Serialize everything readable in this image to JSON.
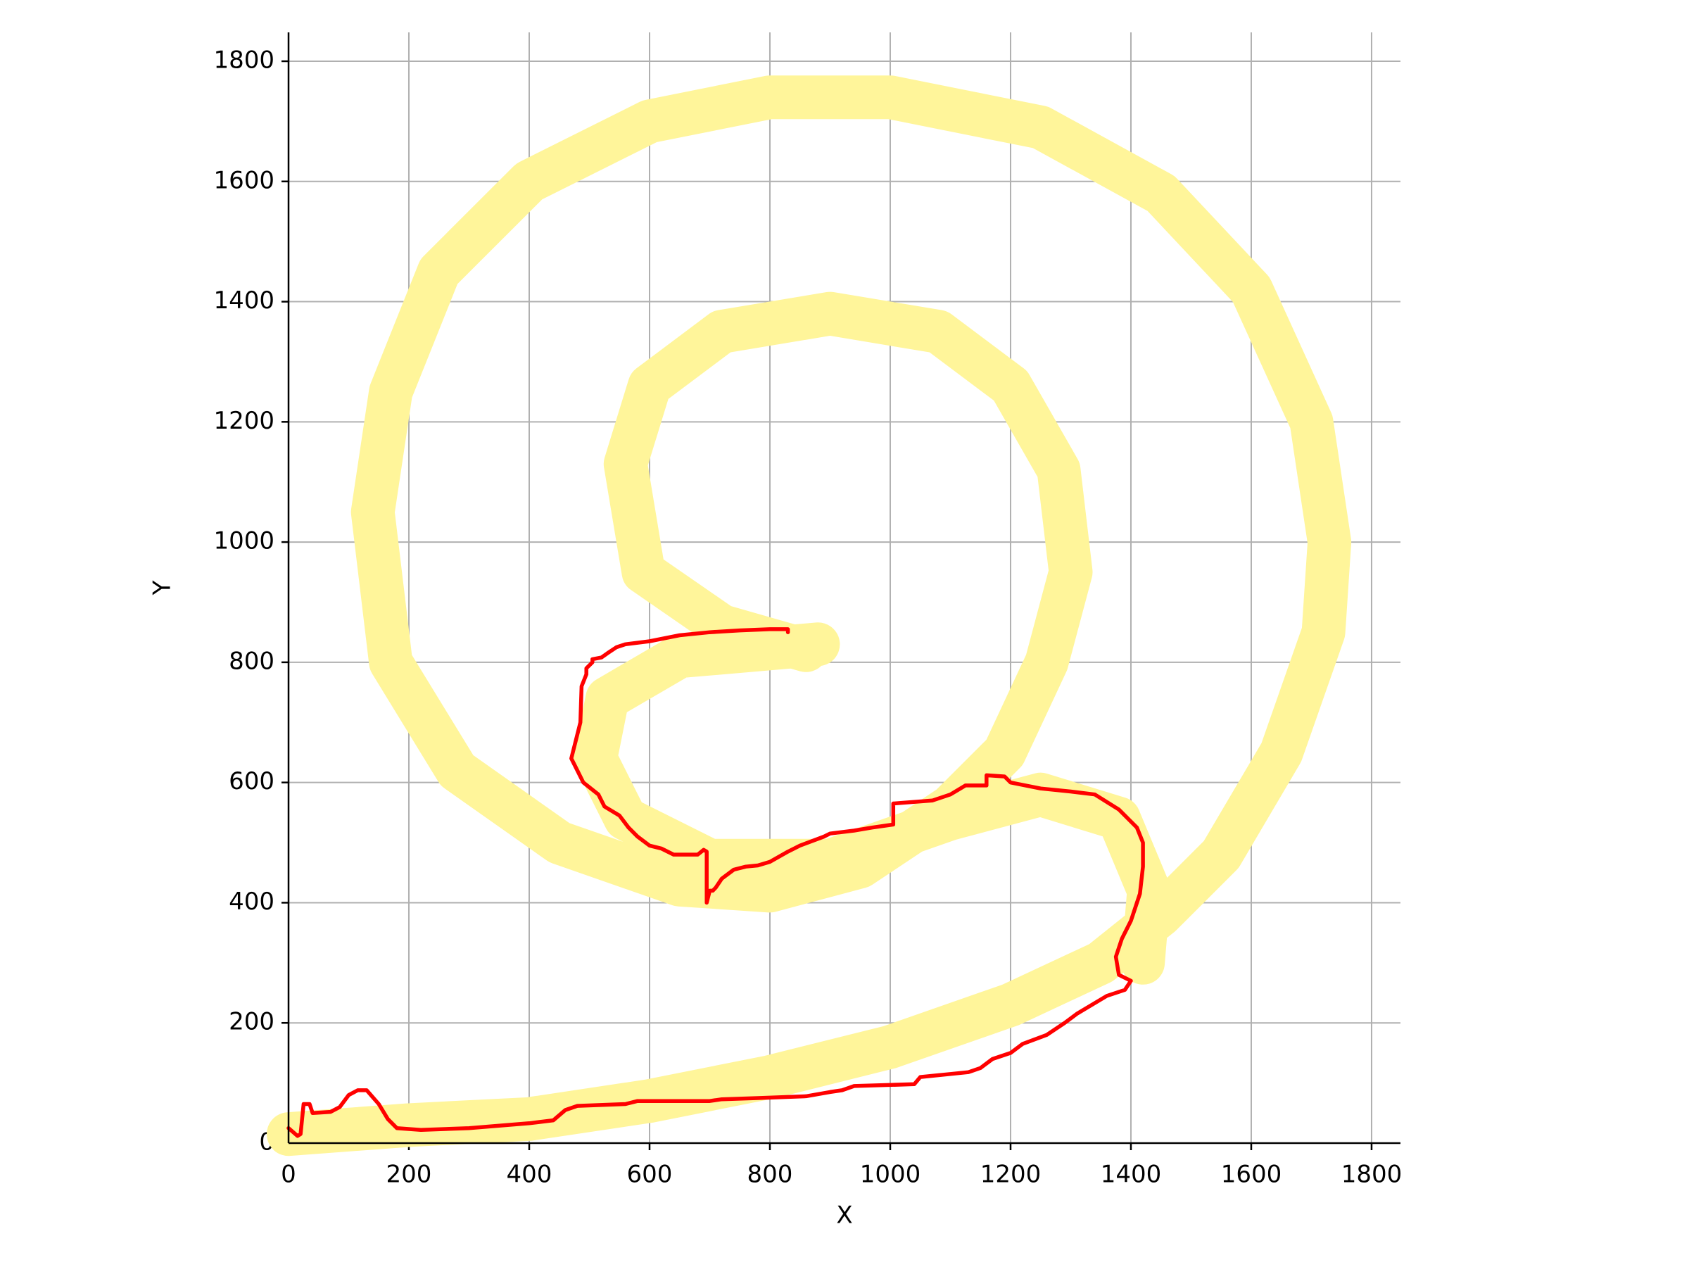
{
  "chart_data": {
    "type": "line",
    "xlabel": "X",
    "ylabel": "Y",
    "xlim": [
      0,
      1848
    ],
    "ylim": [
      0,
      1848
    ],
    "xticks": [
      0,
      200,
      400,
      600,
      800,
      1000,
      1200,
      1400,
      1600,
      1800
    ],
    "yticks": [
      0,
      200,
      400,
      600,
      800,
      1000,
      1200,
      1400,
      1600,
      1800
    ],
    "grid": true,
    "series": [
      {
        "color": "#fff59a",
        "x": [
          0,
          200,
          400,
          600,
          800,
          1000,
          1200,
          1350,
          1450,
          1550,
          1650,
          1720,
          1730,
          1700,
          1600,
          1450,
          1250,
          1000,
          800,
          600,
          400,
          250,
          170,
          140,
          170,
          280,
          450,
          650,
          800,
          950,
          1100,
          1190,
          1260,
          1300,
          1280,
          1200,
          1080,
          900,
          720,
          600,
          560,
          590,
          720,
          860,
          null,
          880,
          650,
          530,
          510,
          560,
          700,
          900,
          1100,
          1250,
          1380,
          1430,
          1420
        ],
        "values": [
          15,
          30,
          40,
          70,
          110,
          160,
          230,
          300,
          380,
          480,
          650,
          850,
          1000,
          1200,
          1420,
          1580,
          1690,
          1740,
          1740,
          1700,
          1600,
          1450,
          1250,
          1050,
          800,
          620,
          500,
          430,
          420,
          460,
          560,
          650,
          800,
          950,
          1120,
          1260,
          1350,
          1380,
          1350,
          1260,
          1130,
          950,
          860,
          820,
          null,
          830,
          810,
          740,
          640,
          540,
          470,
          470,
          540,
          580,
          540,
          420,
          300
        ]
      },
      {
        "color": "#ff0000",
        "x": [
          0,
          15,
          20,
          25,
          35,
          40,
          70,
          85,
          100,
          115,
          130,
          150,
          165,
          180,
          220,
          300,
          400,
          440,
          460,
          480,
          560,
          580,
          700,
          720,
          780,
          860,
          900,
          920,
          940,
          1040,
          1050,
          1100,
          1130,
          1150,
          1170,
          1200,
          1220,
          1260,
          1290,
          1310,
          1360,
          1390,
          1400,
          1380,
          1375,
          1385,
          1400,
          1415,
          1420,
          1420,
          1410,
          1380,
          1340,
          1300,
          1250,
          1200,
          1190,
          1160,
          1160,
          1125,
          1100,
          1070,
          1005,
          1005,
          970,
          940,
          900,
          890,
          850,
          830,
          800,
          780,
          760,
          740,
          720,
          710,
          705,
          700,
          695,
          695,
          690,
          680,
          640,
          620,
          600,
          580,
          565,
          550,
          525,
          515,
          490,
          480,
          470,
          485,
          487,
          495,
          495,
          505,
          505,
          520,
          530,
          545,
          560,
          600,
          650,
          700,
          750,
          800,
          830,
          830
        ],
        "values": [
          25,
          12,
          15,
          65,
          65,
          50,
          52,
          60,
          80,
          88,
          88,
          65,
          40,
          25,
          22,
          25,
          33,
          38,
          55,
          62,
          65,
          70,
          70,
          73,
          75,
          78,
          85,
          88,
          95,
          98,
          110,
          115,
          118,
          125,
          140,
          150,
          165,
          180,
          200,
          215,
          245,
          255,
          270,
          280,
          310,
          340,
          370,
          415,
          460,
          500,
          525,
          555,
          580,
          585,
          590,
          600,
          610,
          612,
          595,
          595,
          580,
          570,
          565,
          530,
          525,
          520,
          515,
          510,
          495,
          485,
          468,
          462,
          460,
          455,
          440,
          425,
          420,
          420,
          400,
          485,
          488,
          480,
          480,
          490,
          495,
          510,
          525,
          545,
          560,
          580,
          600,
          620,
          640,
          700,
          760,
          780,
          790,
          800,
          805,
          808,
          815,
          825,
          830,
          835,
          845,
          850,
          853,
          855,
          855,
          850
        ]
      }
    ]
  }
}
